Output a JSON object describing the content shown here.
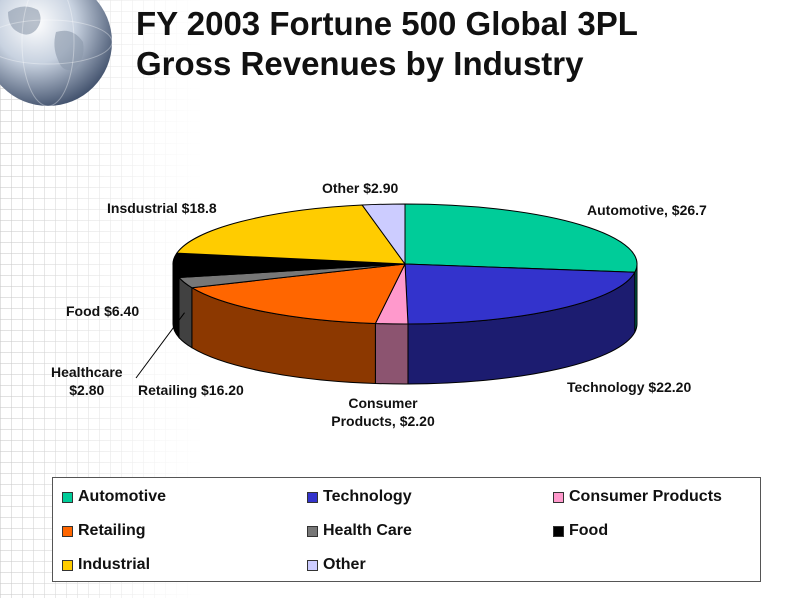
{
  "title_lines": [
    "FY 2003 Fortune 500 Global 3PL",
    "Gross Revenues by Industry"
  ],
  "chart_data": {
    "type": "pie",
    "title": "FY 2003 Fortune 500 Global 3PL Gross Revenues by Industry",
    "slices": [
      {
        "name": "Automotive",
        "value": 26.7,
        "color": "#00CC99",
        "data_label": "Automotive, $26.7"
      },
      {
        "name": "Technology",
        "value": 22.2,
        "color": "#3333CC",
        "data_label": "Technology $22.20"
      },
      {
        "name": "Consumer Products",
        "value": 2.2,
        "color": "#FF99CC",
        "data_label": "Consumer Products, $2.20"
      },
      {
        "name": "Retailing",
        "value": 16.2,
        "color": "#FF6600",
        "data_label": "Retailing $16.20"
      },
      {
        "name": "Health Care",
        "value": 2.8,
        "color": "#777777",
        "data_label": "Healthcare $2.80"
      },
      {
        "name": "Food",
        "value": 6.4,
        "color": "#000000",
        "data_label": "Food $6.40"
      },
      {
        "name": "Industrial",
        "value": 18.8,
        "color": "#FFCC00",
        "data_label": "Insdustrial $18.8"
      },
      {
        "name": "Other",
        "value": 2.9,
        "color": "#CCCCFF",
        "data_label": "Other $2.90"
      }
    ],
    "legend_placement": "bottom",
    "legend": [
      "Automotive",
      "Technology",
      "Consumer Products",
      "Retailing",
      "Health Care",
      "Food",
      "Industrial",
      "Other"
    ]
  },
  "labels": {
    "other": "Other $2.90",
    "automotive": "Automotive, $26.7",
    "industrial": "Insdustrial $18.8",
    "food": "Food $6.40",
    "healthcare_line1": "Healthcare",
    "healthcare_line2": "$2.80",
    "retailing": "Retailing $16.20",
    "consumer_line1": "Consumer",
    "consumer_line2": "Products, $2.20",
    "technology": "Technology $22.20"
  }
}
